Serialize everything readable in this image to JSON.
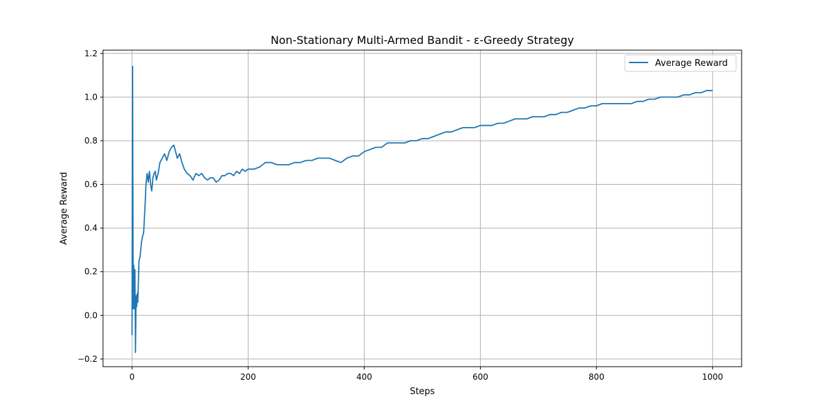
{
  "chart_data": {
    "type": "line",
    "title": "Non-Stationary Multi-Armed Bandit - ε-Greedy Strategy",
    "xlabel": "Steps",
    "ylabel": "Average Reward",
    "xlim": [
      -50,
      1050
    ],
    "ylim": [
      -0.235,
      1.215
    ],
    "xticks": [
      0,
      200,
      400,
      600,
      800,
      1000
    ],
    "xtick_labels": [
      "0",
      "200",
      "400",
      "600",
      "800",
      "1000"
    ],
    "yticks": [
      -0.2,
      0.0,
      0.2,
      0.4,
      0.6,
      0.8,
      1.0,
      1.2
    ],
    "ytick_labels": [
      "−0.2",
      "0.0",
      "0.2",
      "0.4",
      "0.6",
      "0.8",
      "1.0",
      "1.2"
    ],
    "grid": true,
    "legend": {
      "position": "upper-right",
      "entries": [
        "Average Reward"
      ]
    },
    "series": [
      {
        "name": "Average Reward",
        "color": "#1f77b4",
        "x": [
          0,
          1,
          2,
          3,
          4,
          5,
          6,
          7,
          8,
          9,
          10,
          12,
          14,
          16,
          18,
          20,
          22,
          24,
          26,
          28,
          30,
          32,
          34,
          36,
          38,
          40,
          42,
          45,
          48,
          52,
          56,
          60,
          64,
          68,
          72,
          75,
          78,
          82,
          86,
          90,
          95,
          100,
          105,
          110,
          115,
          120,
          125,
          130,
          135,
          140,
          145,
          150,
          155,
          160,
          165,
          170,
          175,
          180,
          185,
          190,
          195,
          200,
          210,
          220,
          230,
          240,
          250,
          260,
          270,
          280,
          290,
          300,
          310,
          320,
          330,
          340,
          350,
          360,
          370,
          380,
          390,
          400,
          410,
          420,
          430,
          440,
          450,
          460,
          470,
          480,
          490,
          500,
          510,
          520,
          530,
          540,
          550,
          560,
          570,
          580,
          590,
          600,
          610,
          620,
          630,
          640,
          650,
          660,
          670,
          680,
          690,
          700,
          710,
          720,
          730,
          740,
          750,
          760,
          770,
          780,
          790,
          800,
          810,
          820,
          830,
          840,
          850,
          860,
          870,
          880,
          890,
          900,
          910,
          920,
          930,
          940,
          950,
          960,
          970,
          980,
          990,
          1000
        ],
        "y": [
          -0.09,
          1.14,
          0.03,
          0.23,
          0.03,
          0.21,
          -0.17,
          0.09,
          0.04,
          0.1,
          0.06,
          0.25,
          0.27,
          0.33,
          0.36,
          0.38,
          0.48,
          0.6,
          0.65,
          0.61,
          0.66,
          0.6,
          0.57,
          0.63,
          0.65,
          0.66,
          0.62,
          0.65,
          0.7,
          0.72,
          0.74,
          0.71,
          0.75,
          0.77,
          0.78,
          0.75,
          0.72,
          0.74,
          0.7,
          0.67,
          0.65,
          0.64,
          0.62,
          0.65,
          0.64,
          0.65,
          0.63,
          0.62,
          0.63,
          0.63,
          0.61,
          0.62,
          0.64,
          0.64,
          0.65,
          0.65,
          0.64,
          0.66,
          0.65,
          0.67,
          0.66,
          0.67,
          0.67,
          0.68,
          0.7,
          0.7,
          0.69,
          0.69,
          0.69,
          0.7,
          0.7,
          0.71,
          0.71,
          0.72,
          0.72,
          0.72,
          0.71,
          0.7,
          0.72,
          0.73,
          0.73,
          0.75,
          0.76,
          0.77,
          0.77,
          0.79,
          0.79,
          0.79,
          0.79,
          0.8,
          0.8,
          0.81,
          0.81,
          0.82,
          0.83,
          0.84,
          0.84,
          0.85,
          0.86,
          0.86,
          0.86,
          0.87,
          0.87,
          0.87,
          0.88,
          0.88,
          0.89,
          0.9,
          0.9,
          0.9,
          0.91,
          0.91,
          0.91,
          0.92,
          0.92,
          0.93,
          0.93,
          0.94,
          0.95,
          0.95,
          0.96,
          0.96,
          0.97,
          0.97,
          0.97,
          0.97,
          0.97,
          0.97,
          0.98,
          0.98,
          0.99,
          0.99,
          1.0,
          1.0,
          1.0,
          1.0,
          1.01,
          1.01,
          1.02,
          1.02,
          1.03,
          1.03
        ]
      }
    ]
  }
}
